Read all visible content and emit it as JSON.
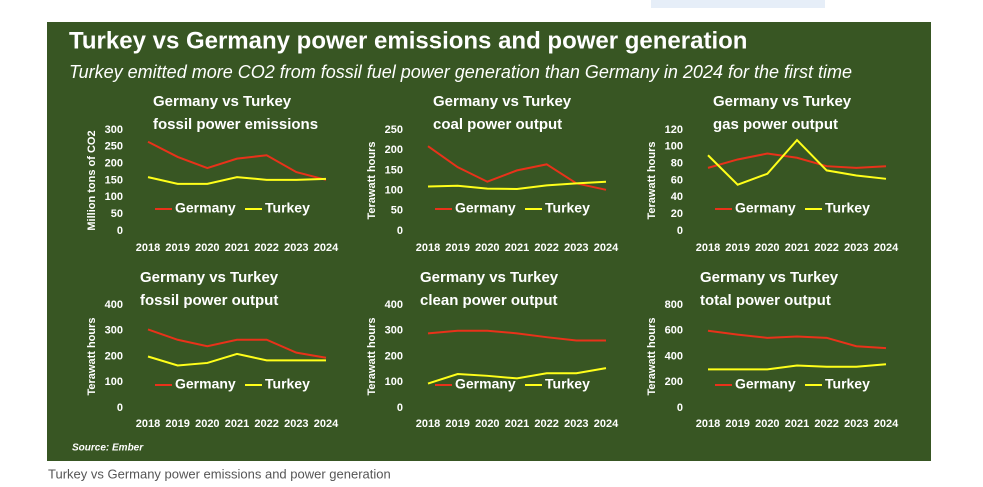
{
  "title": "Turkey vs Germany power emissions and power generation",
  "subtitle": "Turkey emitted more CO2 from fossil fuel power generation than Germany in 2024 for the first time",
  "source": "Source: Ember",
  "caption": "Turkey vs Germany power emissions and power generation",
  "chart_data": [
    {
      "type": "line",
      "title": "Germany vs Turkey",
      "subtitle": "fossil power emissions",
      "ylabel": "Million tons of CO2",
      "categories": [
        "2018",
        "2019",
        "2020",
        "2021",
        "2022",
        "2023",
        "2024"
      ],
      "series": [
        {
          "name": "Germany",
          "color": "#e8321a",
          "values": [
            265,
            220,
            187,
            215,
            225,
            175,
            152
          ]
        },
        {
          "name": "Turkey",
          "color": "#ffff1a",
          "values": [
            160,
            140,
            140,
            160,
            152,
            152,
            155
          ]
        }
      ],
      "ylim": [
        0,
        300
      ],
      "yticks": [
        0,
        50,
        100,
        150,
        200,
        250,
        300
      ]
    },
    {
      "type": "line",
      "title": "Germany vs Turkey",
      "subtitle": "coal power output",
      "ylabel": "Terawatt hours",
      "categories": [
        "2018",
        "2019",
        "2020",
        "2021",
        "2022",
        "2023",
        "2024"
      ],
      "series": [
        {
          "name": "Germany",
          "color": "#e8321a",
          "values": [
            210,
            158,
            122,
            150,
            165,
            118,
            102
          ]
        },
        {
          "name": "Turkey",
          "color": "#ffff1a",
          "values": [
            110,
            112,
            105,
            104,
            113,
            118,
            122
          ]
        }
      ],
      "ylim": [
        0,
        250
      ],
      "yticks": [
        0,
        50,
        100,
        150,
        200,
        250
      ]
    },
    {
      "type": "line",
      "title": "Germany vs Turkey",
      "subtitle": "gas power output",
      "ylabel": "Terawatt hours",
      "categories": [
        "2018",
        "2019",
        "2020",
        "2021",
        "2022",
        "2023",
        "2024"
      ],
      "series": [
        {
          "name": "Germany",
          "color": "#e8321a",
          "values": [
            75,
            85,
            92,
            87,
            77,
            75,
            77
          ]
        },
        {
          "name": "Turkey",
          "color": "#ffff1a",
          "values": [
            90,
            55,
            68,
            108,
            72,
            66,
            62
          ]
        }
      ],
      "ylim": [
        0,
        120
      ],
      "yticks": [
        0,
        20,
        40,
        60,
        80,
        100,
        120
      ]
    },
    {
      "type": "line",
      "title": "Germany vs Turkey",
      "subtitle": "fossil power output",
      "ylabel": "Terawatt hours",
      "categories": [
        "2018",
        "2019",
        "2020",
        "2021",
        "2022",
        "2023",
        "2024"
      ],
      "series": [
        {
          "name": "Germany",
          "color": "#e8321a",
          "values": [
            305,
            265,
            240,
            265,
            265,
            215,
            195
          ]
        },
        {
          "name": "Turkey",
          "color": "#ffff1a",
          "values": [
            200,
            165,
            175,
            210,
            185,
            185,
            185
          ]
        }
      ],
      "ylim": [
        0,
        400
      ],
      "yticks": [
        0,
        100,
        200,
        300,
        400
      ]
    },
    {
      "type": "line",
      "title": "Germany vs Turkey",
      "subtitle": "clean power output",
      "ylabel": "Terawatt hours",
      "categories": [
        "2018",
        "2019",
        "2020",
        "2021",
        "2022",
        "2023",
        "2024"
      ],
      "series": [
        {
          "name": "Germany",
          "color": "#e8321a",
          "values": [
            290,
            300,
            300,
            290,
            275,
            262,
            262
          ]
        },
        {
          "name": "Turkey",
          "color": "#ffff1a",
          "values": [
            95,
            132,
            125,
            115,
            135,
            135,
            155
          ]
        }
      ],
      "ylim": [
        0,
        400
      ],
      "yticks": [
        0,
        100,
        200,
        300,
        400
      ]
    },
    {
      "type": "line",
      "title": "Germany vs Turkey",
      "subtitle": "total power output",
      "ylabel": "Terawatt hours",
      "categories": [
        "2018",
        "2019",
        "2020",
        "2021",
        "2022",
        "2023",
        "2024"
      ],
      "series": [
        {
          "name": "Germany",
          "color": "#e8321a",
          "values": [
            600,
            570,
            545,
            555,
            545,
            480,
            465
          ]
        },
        {
          "name": "Turkey",
          "color": "#ffff1a",
          "values": [
            300,
            300,
            300,
            330,
            320,
            320,
            340
          ]
        }
      ],
      "ylim": [
        0,
        800
      ],
      "yticks": [
        0,
        200,
        400,
        600,
        800
      ]
    }
  ]
}
